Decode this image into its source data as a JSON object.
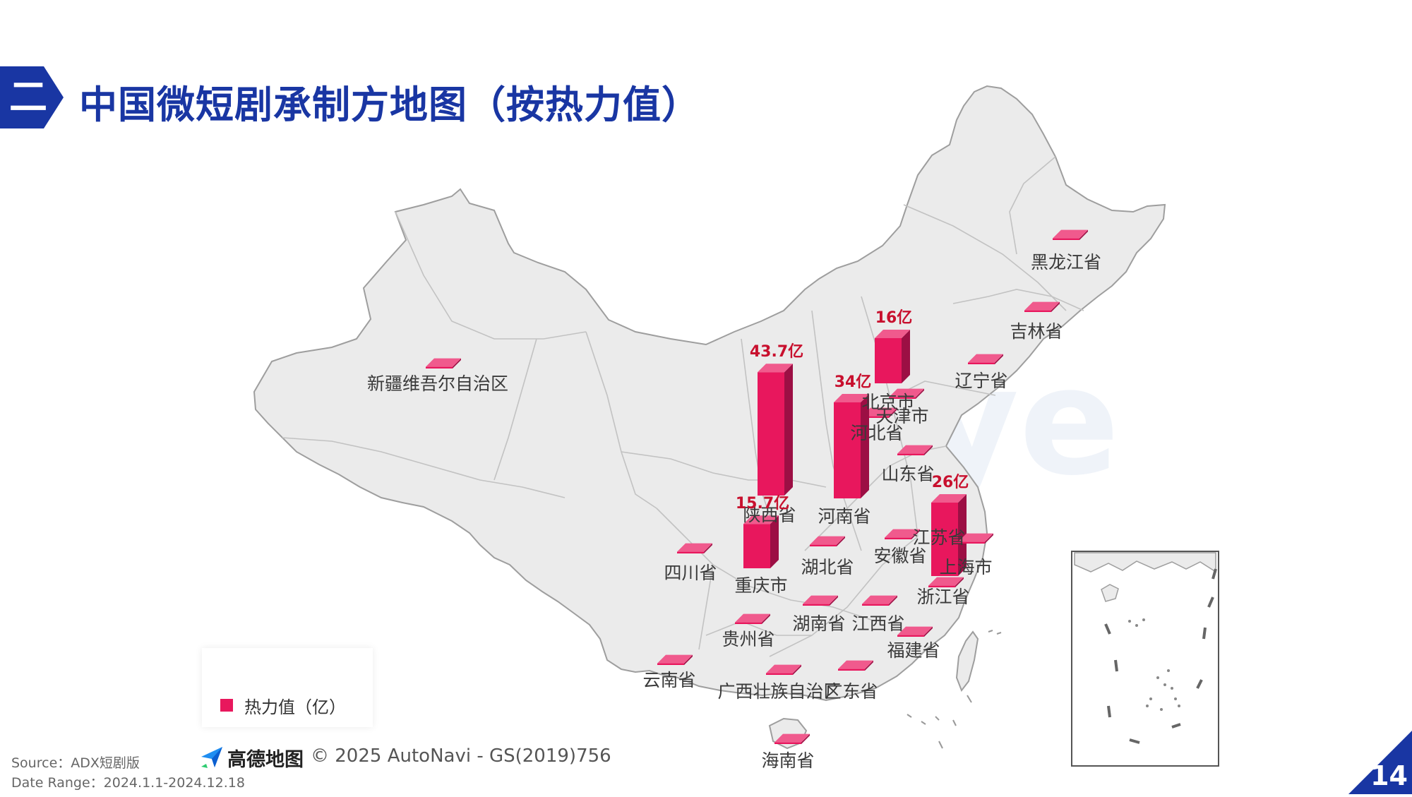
{
  "header": {
    "section_number": "二",
    "title": "中国微短剧承制方地图（按热力值）"
  },
  "watermark": "DataEye",
  "legend": {
    "label": "热力值（亿）",
    "color": "#e8175d"
  },
  "copyright": {
    "brand": "高德地图",
    "text": "© 2025 AutoNavi - GS(2019)756"
  },
  "footer": {
    "source": "Source：ADX短剧版",
    "date_range": "Date Range：2024.1.1-2024.12.18",
    "page_number": "14"
  },
  "colors": {
    "accent": "#1936a3",
    "bar": "#e8175d",
    "value_text": "#c8102e",
    "land": "#ebebeb"
  },
  "regions": [
    {
      "name": "新疆维吾尔自治区"
    },
    {
      "name": "黑龙江省"
    },
    {
      "name": "吉林省"
    },
    {
      "name": "辽宁省"
    },
    {
      "name": "北京市",
      "value": 16,
      "value_label": "16亿"
    },
    {
      "name": "天津市"
    },
    {
      "name": "河北省"
    },
    {
      "name": "山东省"
    },
    {
      "name": "陕西省",
      "value": 43.7,
      "value_label": "43.7亿"
    },
    {
      "name": "河南省",
      "value": 34,
      "value_label": "34亿"
    },
    {
      "name": "江苏省",
      "value": 26,
      "value_label": "26亿"
    },
    {
      "name": "上海市"
    },
    {
      "name": "安徽省"
    },
    {
      "name": "湖北省"
    },
    {
      "name": "四川省"
    },
    {
      "name": "重庆市",
      "value": 15.7,
      "value_label": "15.7亿"
    },
    {
      "name": "浙江省"
    },
    {
      "name": "湖南省"
    },
    {
      "name": "江西省"
    },
    {
      "name": "贵州省"
    },
    {
      "name": "福建省"
    },
    {
      "name": "云南省"
    },
    {
      "name": "广西壮族自治区"
    },
    {
      "name": "广东省"
    },
    {
      "name": "海南省"
    }
  ]
}
